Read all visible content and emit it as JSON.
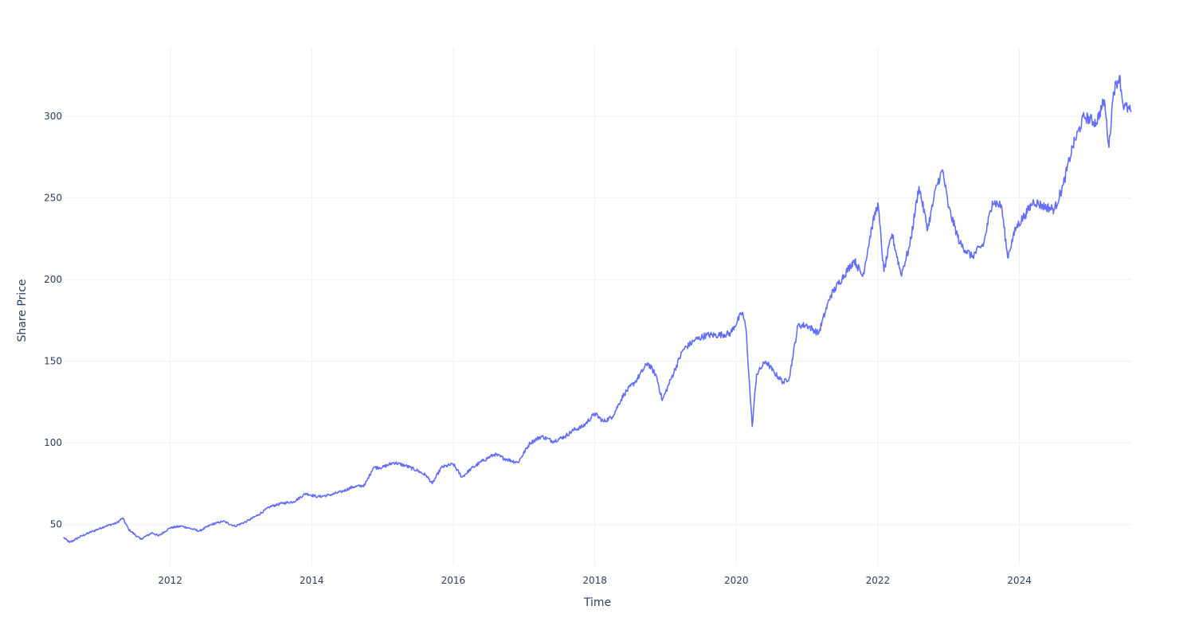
{
  "chart_data": {
    "type": "line",
    "title": "",
    "xlabel": "Time",
    "ylabel": "Share Price",
    "x_tick_labels": [
      "2012",
      "2014",
      "2016",
      "2018",
      "2020",
      "2022",
      "2024"
    ],
    "y_tick_labels": [
      "50",
      "100",
      "150",
      "200",
      "250",
      "300"
    ],
    "y_ticks": [
      50,
      100,
      150,
      200,
      250,
      300
    ],
    "xlim": [
      "2010-07-01",
      "2025-08-01"
    ],
    "ylim": [
      25,
      342
    ],
    "grid": true,
    "legend": "none",
    "series": [
      {
        "color": "#636efa",
        "points": [
          [
            "2010-07-01",
            42
          ],
          [
            "2010-08-01",
            39
          ],
          [
            "2010-10-01",
            43
          ],
          [
            "2010-12-01",
            46
          ],
          [
            "2011-02-01",
            49
          ],
          [
            "2011-04-01",
            51
          ],
          [
            "2011-05-01",
            54
          ],
          [
            "2011-06-01",
            47
          ],
          [
            "2011-08-01",
            41
          ],
          [
            "2011-10-01",
            45
          ],
          [
            "2011-11-01",
            43
          ],
          [
            "2012-01-01",
            48
          ],
          [
            "2012-03-01",
            49
          ],
          [
            "2012-05-01",
            47
          ],
          [
            "2012-06-01",
            46
          ],
          [
            "2012-08-01",
            50
          ],
          [
            "2012-10-01",
            52
          ],
          [
            "2012-12-01",
            49
          ],
          [
            "2013-02-01",
            52
          ],
          [
            "2013-04-01",
            56
          ],
          [
            "2013-06-01",
            61
          ],
          [
            "2013-08-01",
            63
          ],
          [
            "2013-10-01",
            64
          ],
          [
            "2013-12-01",
            69
          ],
          [
            "2014-02-01",
            67
          ],
          [
            "2014-04-01",
            68
          ],
          [
            "2014-06-01",
            70
          ],
          [
            "2014-08-01",
            73
          ],
          [
            "2014-10-01",
            74
          ],
          [
            "2014-11-15",
            85
          ],
          [
            "2015-01-01",
            85
          ],
          [
            "2015-03-01",
            88
          ],
          [
            "2015-05-01",
            86
          ],
          [
            "2015-07-01",
            83
          ],
          [
            "2015-08-15",
            80
          ],
          [
            "2015-09-15",
            75
          ],
          [
            "2015-11-01",
            85
          ],
          [
            "2016-01-01",
            87
          ],
          [
            "2016-02-15",
            79
          ],
          [
            "2016-04-01",
            84
          ],
          [
            "2016-06-01",
            89
          ],
          [
            "2016-08-01",
            93
          ],
          [
            "2016-10-01",
            90
          ],
          [
            "2016-12-01",
            88
          ],
          [
            "2017-02-01",
            100
          ],
          [
            "2017-04-01",
            104
          ],
          [
            "2017-06-01",
            101
          ],
          [
            "2017-08-01",
            104
          ],
          [
            "2017-09-15",
            108
          ],
          [
            "2017-11-01",
            110
          ],
          [
            "2018-01-01",
            118
          ],
          [
            "2018-02-15",
            113
          ],
          [
            "2018-04-01",
            116
          ],
          [
            "2018-06-01",
            130
          ],
          [
            "2018-08-01",
            138
          ],
          [
            "2018-10-01",
            149
          ],
          [
            "2018-11-15",
            141
          ],
          [
            "2018-12-15",
            126
          ],
          [
            "2019-02-01",
            140
          ],
          [
            "2019-04-01",
            157
          ],
          [
            "2019-06-01",
            163
          ],
          [
            "2019-08-01",
            166
          ],
          [
            "2019-10-01",
            166
          ],
          [
            "2019-12-01",
            167
          ],
          [
            "2020-02-01",
            180
          ],
          [
            "2020-02-20",
            170
          ],
          [
            "2020-03-23",
            110
          ],
          [
            "2020-04-15",
            142
          ],
          [
            "2020-06-01",
            150
          ],
          [
            "2020-07-15",
            143
          ],
          [
            "2020-09-01",
            137
          ],
          [
            "2020-10-01",
            140
          ],
          [
            "2020-11-15",
            172
          ],
          [
            "2021-01-01",
            172
          ],
          [
            "2021-03-01",
            167
          ],
          [
            "2021-05-01",
            190
          ],
          [
            "2021-07-01",
            201
          ],
          [
            "2021-09-01",
            212
          ],
          [
            "2021-10-15",
            202
          ],
          [
            "2021-12-01",
            232
          ],
          [
            "2022-01-01",
            247
          ],
          [
            "2022-02-01",
            205
          ],
          [
            "2022-03-15",
            228
          ],
          [
            "2022-05-01",
            203
          ],
          [
            "2022-06-15",
            221
          ],
          [
            "2022-08-01",
            257
          ],
          [
            "2022-09-15",
            231
          ],
          [
            "2022-11-01",
            258
          ],
          [
            "2022-12-01",
            267
          ],
          [
            "2023-01-01",
            244
          ],
          [
            "2023-03-01",
            222
          ],
          [
            "2023-05-01",
            214
          ],
          [
            "2023-07-01",
            222
          ],
          [
            "2023-08-15",
            248
          ],
          [
            "2023-10-01",
            245
          ],
          [
            "2023-11-01",
            214
          ],
          [
            "2023-12-15",
            232
          ],
          [
            "2024-02-01",
            240
          ],
          [
            "2024-03-15",
            248
          ],
          [
            "2024-05-01",
            245
          ],
          [
            "2024-07-01",
            243
          ],
          [
            "2024-08-15",
            258
          ],
          [
            "2024-10-01",
            281
          ],
          [
            "2024-12-01",
            300
          ],
          [
            "2025-02-01",
            296
          ],
          [
            "2025-03-15",
            310
          ],
          [
            "2025-04-08",
            281
          ],
          [
            "2025-05-01",
            315
          ],
          [
            "2025-06-01",
            325
          ],
          [
            "2025-06-20",
            307
          ],
          [
            "2025-07-31",
            303
          ]
        ]
      }
    ]
  }
}
